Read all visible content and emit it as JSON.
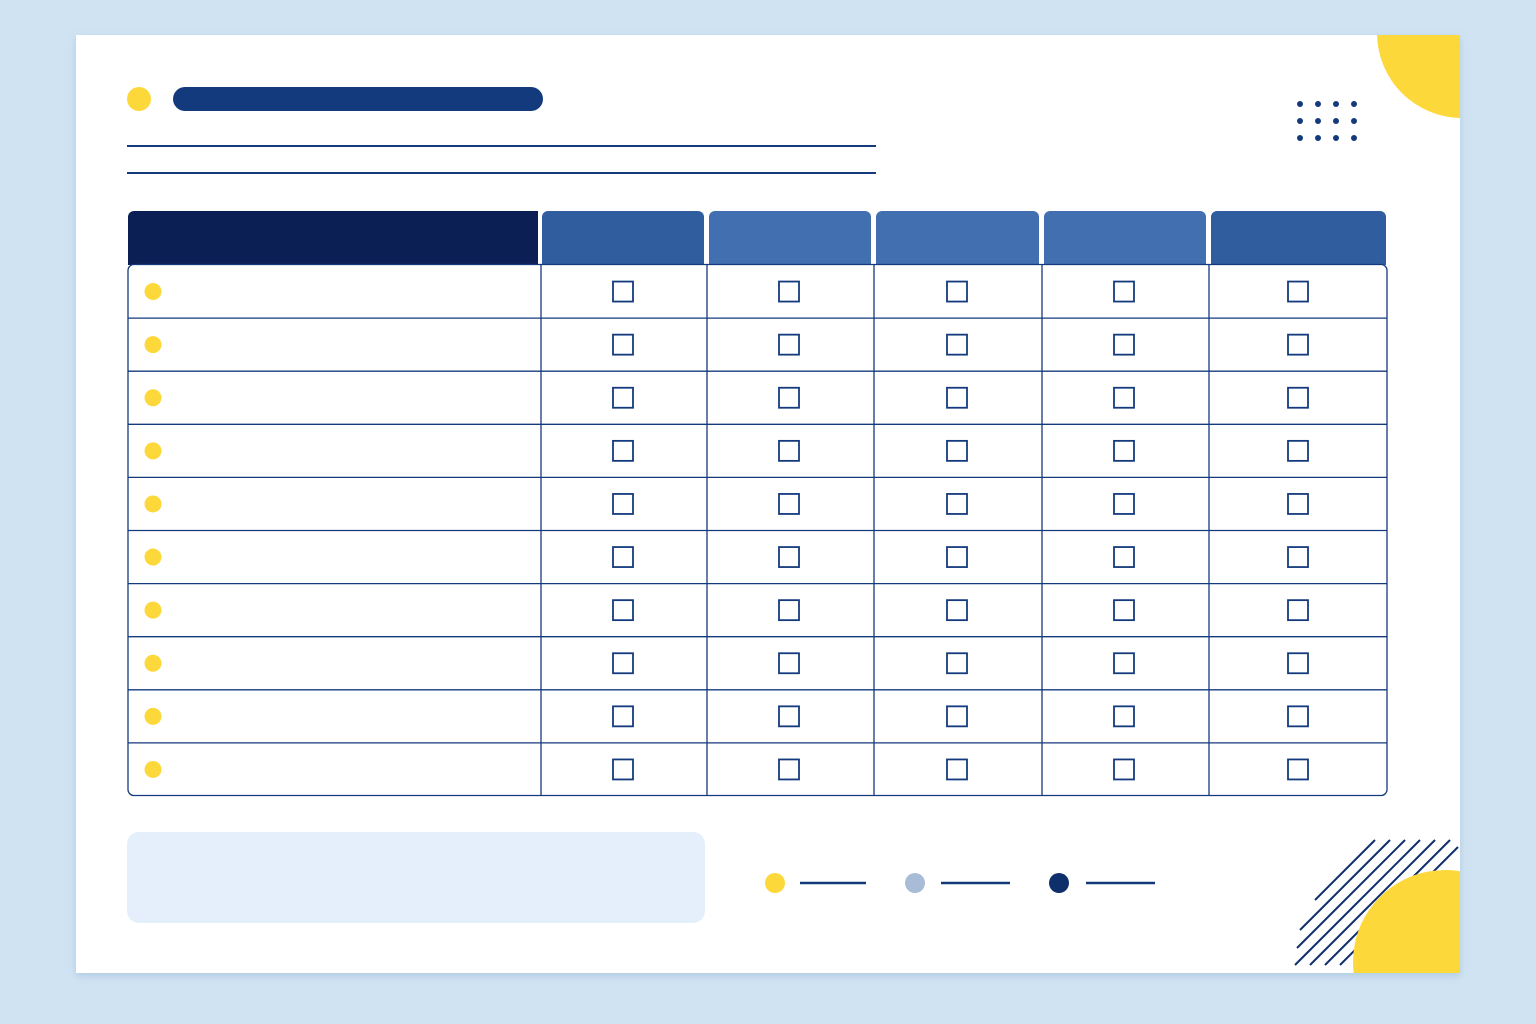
{
  "table": {
    "rows": [
      [
        false,
        false,
        false,
        false,
        false
      ],
      [
        false,
        false,
        false,
        false,
        false
      ],
      [
        false,
        false,
        false,
        false,
        false
      ],
      [
        false,
        false,
        false,
        false,
        false
      ],
      [
        false,
        false,
        false,
        false,
        false
      ],
      [
        false,
        false,
        false,
        false,
        false
      ],
      [
        false,
        false,
        false,
        false,
        false
      ],
      [
        false,
        false,
        false,
        false,
        false
      ],
      [
        false,
        false,
        false,
        false,
        false
      ],
      [
        false,
        false,
        false,
        false,
        false
      ]
    ]
  }
}
